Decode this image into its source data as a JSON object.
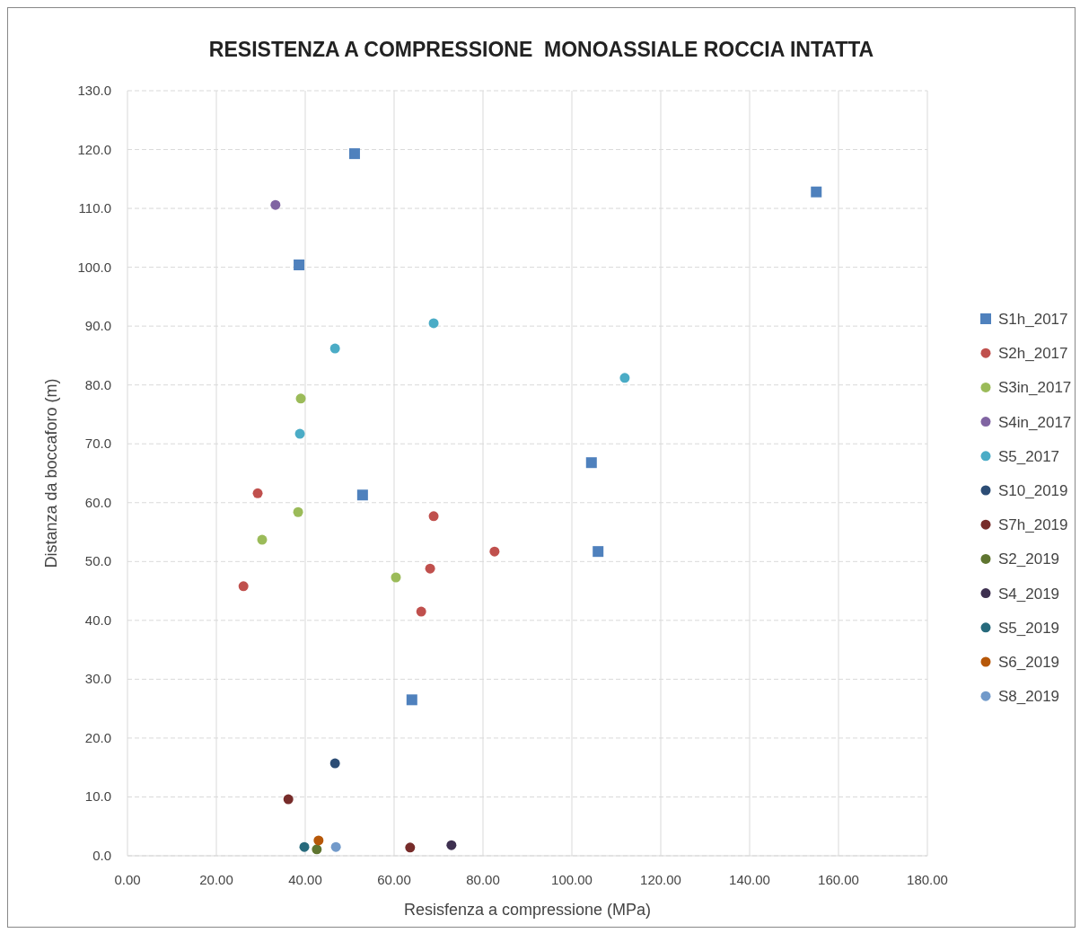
{
  "chart_data": {
    "type": "scatter",
    "title": "RESISTENZA A COMPRESSIONE  MONOASSIALE ROCCIA INTATTA",
    "xlabel": "Resisfenza a compressione (MPa)",
    "ylabel": "Distanza da boccaforo (m)",
    "xlim": [
      0,
      180
    ],
    "ylim": [
      0,
      130
    ],
    "xticks": [
      {
        "value": 0,
        "label": "0.00"
      },
      {
        "value": 20,
        "label": "20.00"
      },
      {
        "value": 40,
        "label": "40.00"
      },
      {
        "value": 60,
        "label": "60.00"
      },
      {
        "value": 80,
        "label": "80.00"
      },
      {
        "value": 100,
        "label": "100.00"
      },
      {
        "value": 120,
        "label": "120.00"
      },
      {
        "value": 140,
        "label": "140.00"
      },
      {
        "value": 160,
        "label": "160.00"
      },
      {
        "value": 180,
        "label": "180.00"
      }
    ],
    "yticks": [
      {
        "value": 0,
        "label": "0.0"
      },
      {
        "value": 10,
        "label": "10.0"
      },
      {
        "value": 20,
        "label": "20.0"
      },
      {
        "value": 30,
        "label": "30.0"
      },
      {
        "value": 40,
        "label": "40.0"
      },
      {
        "value": 50,
        "label": "50.0"
      },
      {
        "value": 60,
        "label": "60.0"
      },
      {
        "value": 70,
        "label": "70.0"
      },
      {
        "value": 80,
        "label": "80.0"
      },
      {
        "value": 90,
        "label": "90.0"
      },
      {
        "value": 100,
        "label": "100.0"
      },
      {
        "value": 110,
        "label": "110.0"
      },
      {
        "value": 120,
        "label": "120.0"
      },
      {
        "value": 130,
        "label": "130.0"
      }
    ],
    "grid": true,
    "legend": "right",
    "marker": "circle",
    "series": [
      {
        "name": "S1h_2017",
        "color": "#4f81bd",
        "marker": "square",
        "x": [
          51.1,
          155.0,
          38.6,
          104.4,
          52.9,
          105.9,
          64.0
        ],
        "values": [
          119.3,
          112.8,
          100.4,
          66.8,
          61.3,
          51.7,
          26.5
        ]
      },
      {
        "name": "S2h_2017",
        "color": "#c0504d",
        "x": [
          29.3,
          68.9,
          82.6,
          68.1,
          26.1,
          66.1
        ],
        "values": [
          61.6,
          57.7,
          51.7,
          48.8,
          45.8,
          41.5
        ]
      },
      {
        "name": "S3in_2017",
        "color": "#9bbb59",
        "x": [
          39.0,
          38.4,
          30.3,
          60.4
        ],
        "values": [
          77.7,
          58.4,
          53.7,
          47.3
        ]
      },
      {
        "name": "S4in_2017",
        "color": "#8064a2",
        "x": [
          33.3
        ],
        "values": [
          110.6
        ]
      },
      {
        "name": "S5_2017",
        "color": "#4bacc6",
        "x": [
          68.9,
          46.7,
          111.9,
          38.8
        ],
        "values": [
          90.5,
          86.2,
          81.2,
          71.7
        ]
      },
      {
        "name": "S10_2019",
        "color": "#2c4d75",
        "x": [
          46.7
        ],
        "values": [
          15.7
        ]
      },
      {
        "name": "S7h_2019",
        "color": "#772c2a",
        "x": [
          36.2,
          63.6
        ],
        "values": [
          9.6,
          1.4
        ]
      },
      {
        "name": "S2_2019",
        "color": "#5f7530",
        "x": [
          42.6
        ],
        "values": [
          1.1
        ]
      },
      {
        "name": "S4_2019",
        "color": "#3e3050",
        "x": [
          72.9
        ],
        "values": [
          1.8
        ]
      },
      {
        "name": "S5_2019",
        "color": "#276a7c",
        "x": [
          39.8
        ],
        "values": [
          1.5
        ]
      },
      {
        "name": "S6_2019",
        "color": "#b65708",
        "x": [
          43.0
        ],
        "values": [
          2.6
        ]
      },
      {
        "name": "S8_2019",
        "color": "#729aca",
        "x": [
          46.9
        ],
        "values": [
          1.5
        ]
      }
    ]
  }
}
